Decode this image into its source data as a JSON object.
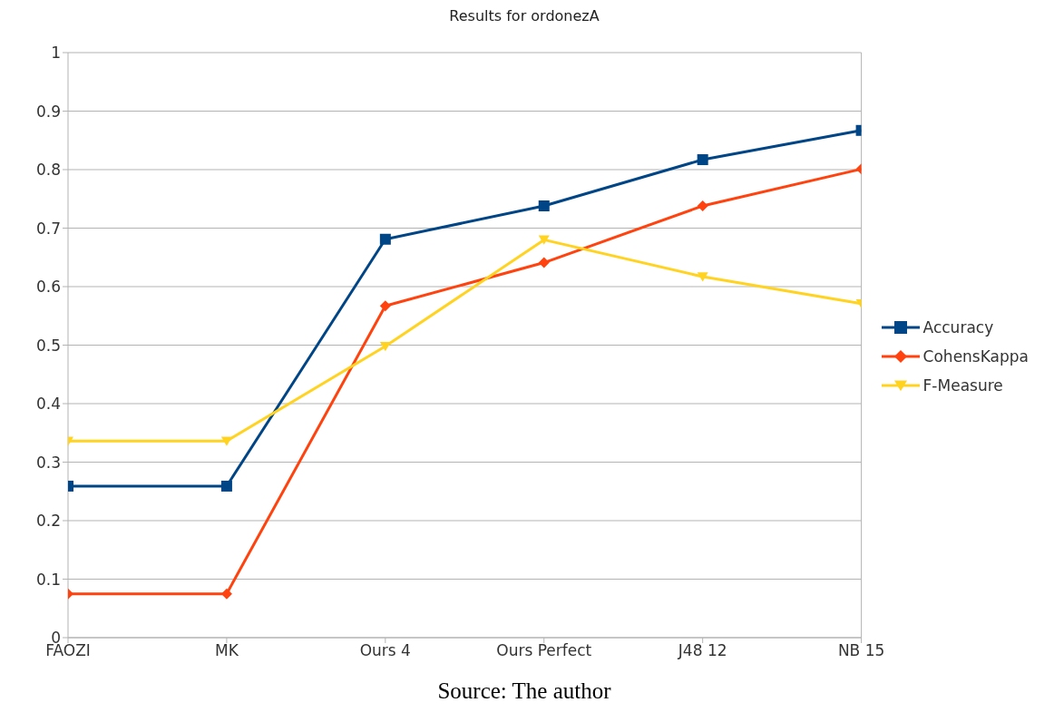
{
  "chart_data": {
    "type": "line",
    "title": "Results for ordonezA",
    "categories": [
      "FAOZI",
      "MK",
      "Ours 4",
      "Ours Perfect",
      "J48 12",
      "NB 15"
    ],
    "series": [
      {
        "name": "Accuracy",
        "color": "#004586",
        "marker": "square",
        "values": [
          0.259,
          0.259,
          0.681,
          0.738,
          0.817,
          0.867
        ]
      },
      {
        "name": "CohensKappa",
        "color": "#ff420e",
        "marker": "diamond",
        "values": [
          0.075,
          0.075,
          0.567,
          0.641,
          0.738,
          0.801
        ]
      },
      {
        "name": "F-Measure",
        "color": "#ffd320",
        "marker": "triangle",
        "values": [
          0.336,
          0.336,
          0.498,
          0.68,
          0.617,
          0.571
        ]
      }
    ],
    "ylim": [
      0,
      1
    ],
    "yticks": [
      0,
      0.1,
      0.2,
      0.3,
      0.4,
      0.5,
      0.6,
      0.7,
      0.8,
      0.9,
      1
    ],
    "grid": "y",
    "legend": "right",
    "line_style": "solid",
    "annotations": [
      "Source: The author"
    ]
  }
}
